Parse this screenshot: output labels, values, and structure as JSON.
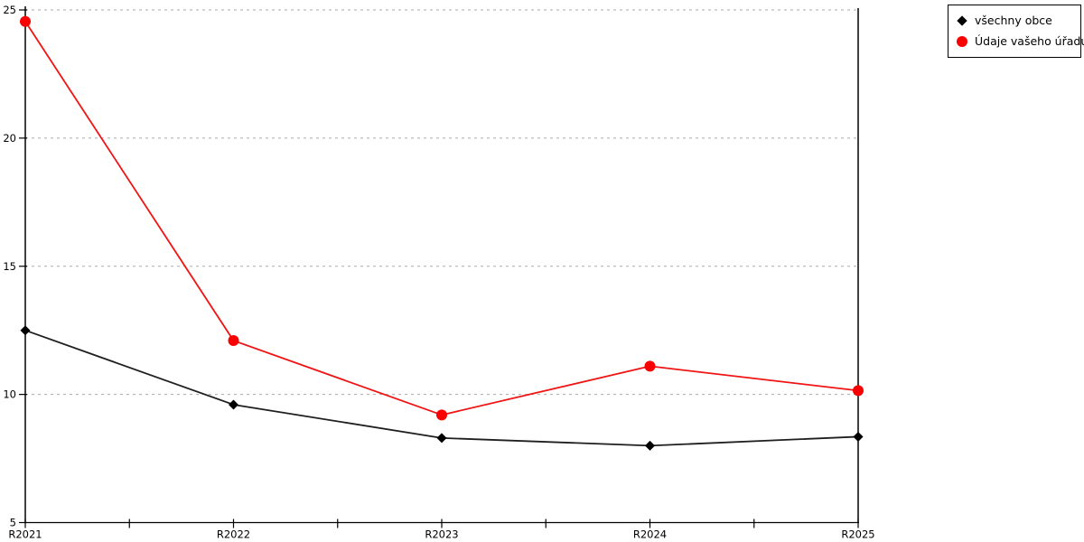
{
  "chart_data": {
    "type": "line",
    "title": "",
    "xlabel": "",
    "ylabel": "",
    "categories": [
      "R2021",
      "R2022",
      "R2023",
      "R2024",
      "R2025"
    ],
    "series": [
      {
        "name": "všechny obce",
        "color": "#1f1f1f",
        "marker": "diamond",
        "marker_color": "#000000",
        "values": [
          12.5,
          9.6,
          8.3,
          8.0,
          8.35
        ]
      },
      {
        "name": "Údaje vašeho úřadu",
        "color": "#f01414",
        "marker": "circle",
        "marker_color": "#fa0000",
        "values": [
          24.55,
          12.1,
          9.2,
          11.1,
          10.15
        ]
      }
    ],
    "ylim": [
      5,
      25
    ],
    "yticks": [
      5,
      10,
      15,
      20,
      25
    ],
    "ytick_labels": [
      "5",
      "10",
      "15",
      "20",
      "25"
    ],
    "grid": "horizontal-dotted",
    "grid_color": "#aaaaaa",
    "axis_color": "#000000",
    "legend_position": "top-right"
  }
}
